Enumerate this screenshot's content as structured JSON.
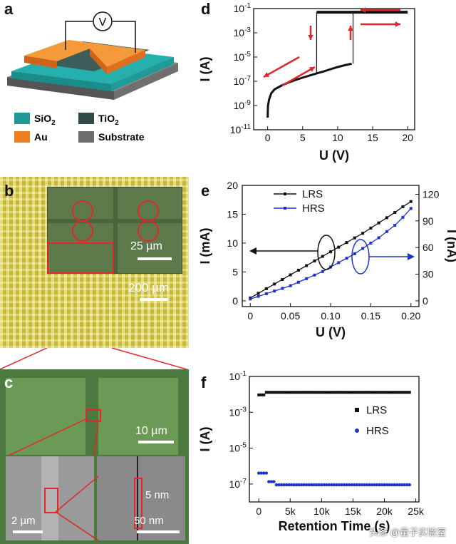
{
  "panels": {
    "a": {
      "label": "a",
      "meter_symbol": "V",
      "legend": [
        {
          "text": "SiO",
          "sub": "2",
          "color": "#1f9a97"
        },
        {
          "text": "TiO",
          "sub": "2",
          "color": "#2f4a48"
        },
        {
          "text": "Au",
          "sub": "",
          "color": "#f07d1f"
        },
        {
          "text": "Substrate",
          "sub": "",
          "color": "#6d6d6d"
        }
      ]
    },
    "b": {
      "label": "b",
      "scale_small": "25 µm",
      "scale_large": "200 µm"
    },
    "c": {
      "label": "c",
      "scale_top": "10 µm",
      "scale_bl": "2 µm",
      "scale_br": "50 nm",
      "gap_label": "5 nm"
    },
    "watermark": "头条 @量子实验室"
  },
  "chart_data": [
    {
      "id": "d",
      "label": "d",
      "type": "line",
      "xlabel": "U (V)",
      "ylabel": "I (A)",
      "xlim": [
        -2,
        21
      ],
      "xticks": [
        0,
        5,
        10,
        15,
        20
      ],
      "ylim_log10": [
        -11,
        -1
      ],
      "yscale": "log",
      "yticks": [
        "10-1",
        "10-3",
        "10-5",
        "10-7",
        "10-9",
        "10-11"
      ],
      "series": [
        {
          "values_hrs": [
            [
              0,
              1e-10
            ],
            [
              0.05,
              1e-09
            ],
            [
              0.2,
              3e-09
            ],
            [
              0.5,
              1e-08
            ],
            [
              1,
              2.2e-08
            ],
            [
              2,
              4.5e-08
            ],
            [
              3,
              8e-08
            ],
            [
              4,
              1.3e-07
            ],
            [
              5,
              2e-07
            ],
            [
              6,
              3e-07
            ],
            [
              7,
              4.5e-07
            ],
            [
              8,
              6.5e-07
            ],
            [
              9,
              1e-06
            ],
            [
              10,
              1.5e-06
            ],
            [
              11,
              2.1e-06
            ],
            [
              12,
              2.8e-06
            ]
          ],
          "values_lrs": [
            [
              7,
              0.05
            ],
            [
              10,
              0.05
            ],
            [
              15,
              0.05
            ],
            [
              20,
              0.05
            ]
          ],
          "transitions": [
            [
              7,
              4.5e-07,
              7,
              0.05
            ],
            [
              12.2,
              2.8e-06,
              12.2,
              0.05
            ]
          ]
        }
      ]
    },
    {
      "id": "e",
      "label": "e",
      "type": "line",
      "xlabel": "U (V)",
      "ylabel_left": "I (mA)",
      "ylabel_right": "I (nA)",
      "xticks": [
        0,
        0.05,
        0.1,
        0.15,
        0.2
      ],
      "xtick_labels": [
        "0",
        "0.05",
        "0.10",
        "0.15",
        "0.20"
      ],
      "ylim_left": [
        0,
        20
      ],
      "yticks_left": [
        0,
        5,
        10,
        15,
        20
      ],
      "ylim_right": [
        0,
        130
      ],
      "yticks_right": [
        0,
        30,
        60,
        90,
        120
      ],
      "x": [
        0,
        0.01,
        0.02,
        0.03,
        0.04,
        0.05,
        0.06,
        0.07,
        0.08,
        0.09,
        0.1,
        0.11,
        0.12,
        0.13,
        0.14,
        0.15,
        0.16,
        0.17,
        0.18,
        0.19,
        0.2
      ],
      "series": [
        {
          "name": "LRS",
          "color": "#111111",
          "axis": "left",
          "values": [
            0.5,
            1.3,
            2.1,
            2.9,
            3.7,
            4.5,
            5.3,
            6.1,
            6.9,
            7.7,
            8.5,
            9.3,
            10.1,
            10.9,
            11.7,
            12.6,
            13.5,
            14.4,
            15.3,
            16.3,
            17.2
          ]
        },
        {
          "name": "HRS",
          "color": "#1f33c8",
          "axis": "right",
          "values": [
            2,
            5,
            8,
            11,
            14,
            17,
            21,
            25,
            29,
            33,
            38,
            43,
            48,
            53,
            59,
            65,
            71,
            78,
            85,
            94,
            104
          ]
        }
      ]
    },
    {
      "id": "f",
      "label": "f",
      "type": "scatter",
      "xlabel": "Retention Time (s)",
      "ylabel": "I (A)",
      "xticks": [
        0,
        5000,
        10000,
        15000,
        20000,
        25000
      ],
      "xtick_labels": [
        "0",
        "5k",
        "10k",
        "15k",
        "20k",
        "25k"
      ],
      "yscale": "log",
      "ylim_log10": [
        -8,
        -1
      ],
      "yticks": [
        "10-1",
        "10-3",
        "10-5",
        "10-7"
      ],
      "series": [
        {
          "name": "LRS",
          "color": "#111111",
          "marker": "square",
          "value": 0.013
        },
        {
          "name": "HRS",
          "color": "#1f33c8",
          "marker": "circle",
          "value": 9e-08
        }
      ]
    }
  ]
}
